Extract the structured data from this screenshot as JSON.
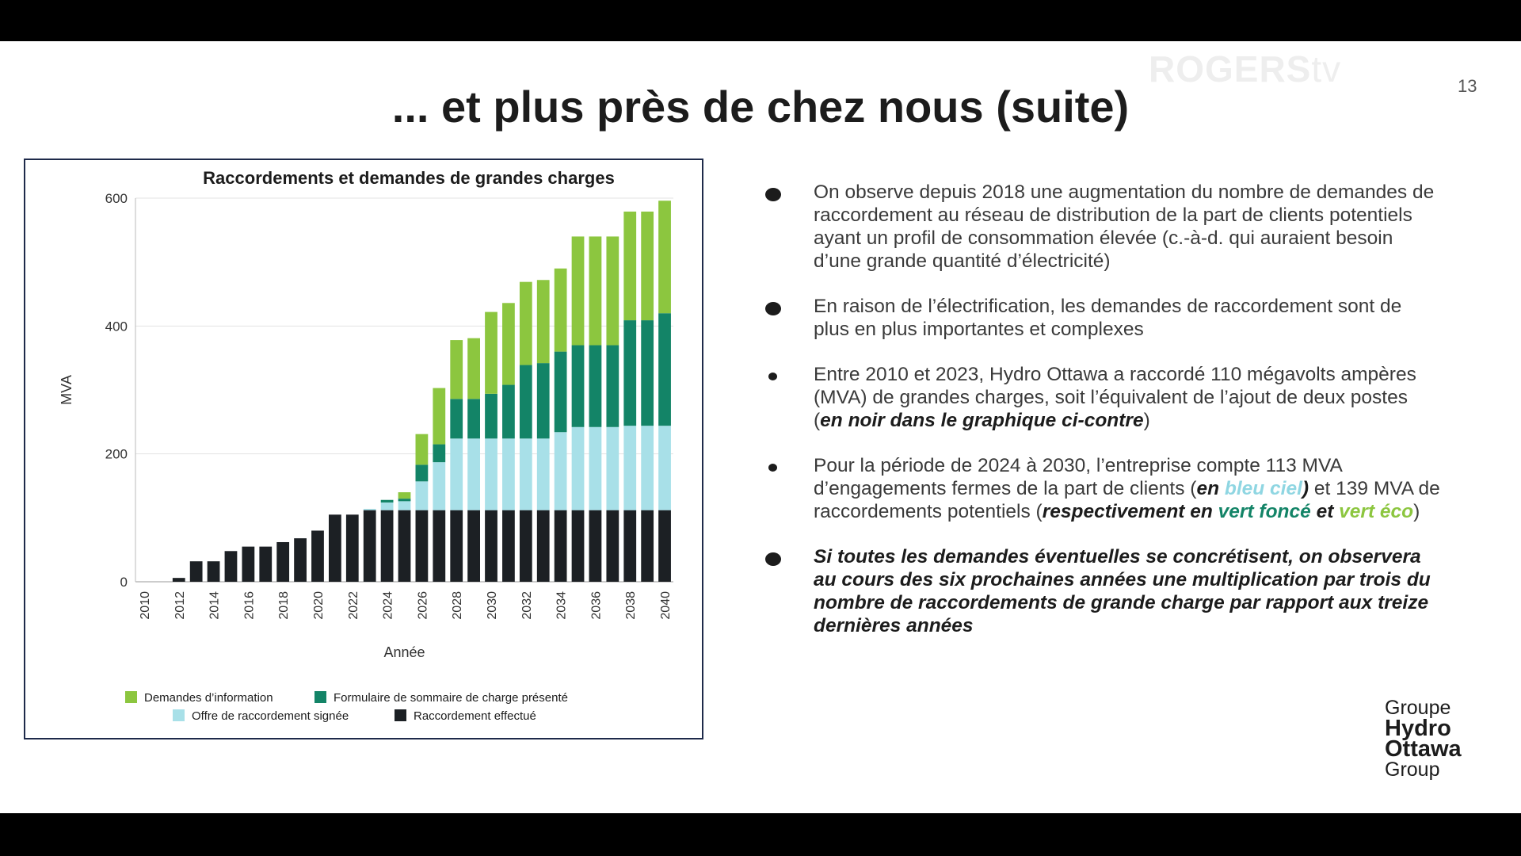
{
  "slide": {
    "title": "... et plus près de chez nous (suite)",
    "page_number": "13",
    "watermark": {
      "brand": "ROGERS",
      "suffix": "tv"
    }
  },
  "colors": {
    "demandes_information": "#8cc63f",
    "formulaire": "#138467",
    "offre": "#a8e0e8",
    "raccordement": "#1c2024"
  },
  "bullets": [
    {
      "parts": [
        {
          "text": "On observe depuis 2018 une augmentation du nombre de demandes de raccordement au réseau de distribution de la part de clients potentiels ayant un profil de consommation élevée (c.-à-d. qui auraient besoin d’une grande quantité d’électricité)"
        }
      ]
    },
    {
      "parts": [
        {
          "text": "En raison de l’électrification, les demandes de raccordement sont de plus en plus importantes et complexes"
        }
      ]
    },
    {
      "parts": [
        {
          "text": "Entre 2010 et 2023, Hydro Ottawa a raccordé 110 mégavolts ampères (MVA) de grandes charges, soit l’équivalent de l’ajout de deux postes ("
        },
        {
          "text": "en noir dans le graphique ci-contre",
          "style": "em"
        },
        {
          "text": ")"
        }
      ]
    },
    {
      "parts": [
        {
          "text": "Pour la période de 2024 à 2030, l’entreprise compte 113 MVA d’engagements fermes de la part de clients ("
        },
        {
          "text": "en ",
          "style": "em"
        },
        {
          "text": "bleu ciel",
          "style": "em-blue"
        },
        {
          "text": ")",
          "style": "em"
        },
        {
          "text": " et 139 MVA de raccordements potentiels ("
        },
        {
          "text": "respectivement en ",
          "style": "em"
        },
        {
          "text": "vert foncé",
          "style": "em-dkgreen"
        },
        {
          "text": " et ",
          "style": "em"
        },
        {
          "text": "vert éco",
          "style": "em-green"
        },
        {
          "text": ")"
        }
      ]
    },
    {
      "parts": [
        {
          "text": "Si toutes les demandes éventuelles se concrétisent, on observera au cours des six prochaines années une multiplication par trois du nombre de raccordements de grande charge par rapport aux treize dernières années"
        }
      ]
    }
  ],
  "logo": {
    "line1": "Groupe",
    "line2": "Hydro",
    "line3": "Ottawa",
    "line4": "Group"
  },
  "chart_data": {
    "type": "bar",
    "stacked": true,
    "title": "Raccordements et demandes de grandes charges",
    "xlabel": "Année",
    "ylabel": "MVA",
    "ylim": [
      0,
      600
    ],
    "yticks": [
      0,
      200,
      400,
      600
    ],
    "grid": true,
    "legend_position": "bottom",
    "categories": [
      "2010",
      "2011",
      "2012",
      "2013",
      "2014",
      "2015",
      "2016",
      "2017",
      "2018",
      "2019",
      "2020",
      "2021",
      "2022",
      "2023",
      "2024",
      "2025",
      "2026",
      "2027",
      "2028",
      "2029",
      "2030",
      "2031",
      "2032",
      "2033",
      "2034",
      "2035",
      "2036",
      "2037",
      "2038",
      "2039",
      "2040"
    ],
    "xtick_labels": [
      "2010",
      "2012",
      "2014",
      "2016",
      "2018",
      "2020",
      "2022",
      "2024",
      "2026",
      "2028",
      "2030",
      "2032",
      "2034",
      "2036",
      "2038",
      "2040"
    ],
    "series": [
      {
        "name": "Raccordement effectué",
        "color": "#1c2024",
        "values": [
          0,
          0,
          6,
          32,
          32,
          48,
          55,
          55,
          62,
          68,
          80,
          105,
          105,
          112,
          112,
          112,
          112,
          112,
          112,
          112,
          112,
          112,
          112,
          112,
          112,
          112,
          112,
          112,
          112,
          112,
          112
        ]
      },
      {
        "name": "Offre de raccordement signée",
        "color": "#a8e0e8",
        "values": [
          0,
          0,
          0,
          0,
          0,
          0,
          0,
          0,
          0,
          0,
          0,
          0,
          0,
          2,
          12,
          14,
          45,
          75,
          112,
          112,
          112,
          112,
          112,
          112,
          122,
          130,
          130,
          130,
          132,
          132,
          132
        ]
      },
      {
        "name": "Formulaire de sommaire de charge présenté",
        "color": "#138467",
        "values": [
          0,
          0,
          0,
          0,
          0,
          0,
          0,
          0,
          0,
          0,
          0,
          0,
          0,
          0,
          4,
          4,
          26,
          28,
          62,
          62,
          70,
          84,
          115,
          118,
          126,
          128,
          128,
          128,
          165,
          165,
          176
        ]
      },
      {
        "name": "Demandes d’information",
        "color": "#8cc63f",
        "values": [
          0,
          0,
          0,
          0,
          0,
          0,
          0,
          0,
          0,
          0,
          0,
          0,
          0,
          0,
          0,
          10,
          48,
          88,
          92,
          95,
          128,
          128,
          130,
          130,
          130,
          170,
          170,
          170,
          170,
          170,
          176
        ]
      }
    ]
  }
}
